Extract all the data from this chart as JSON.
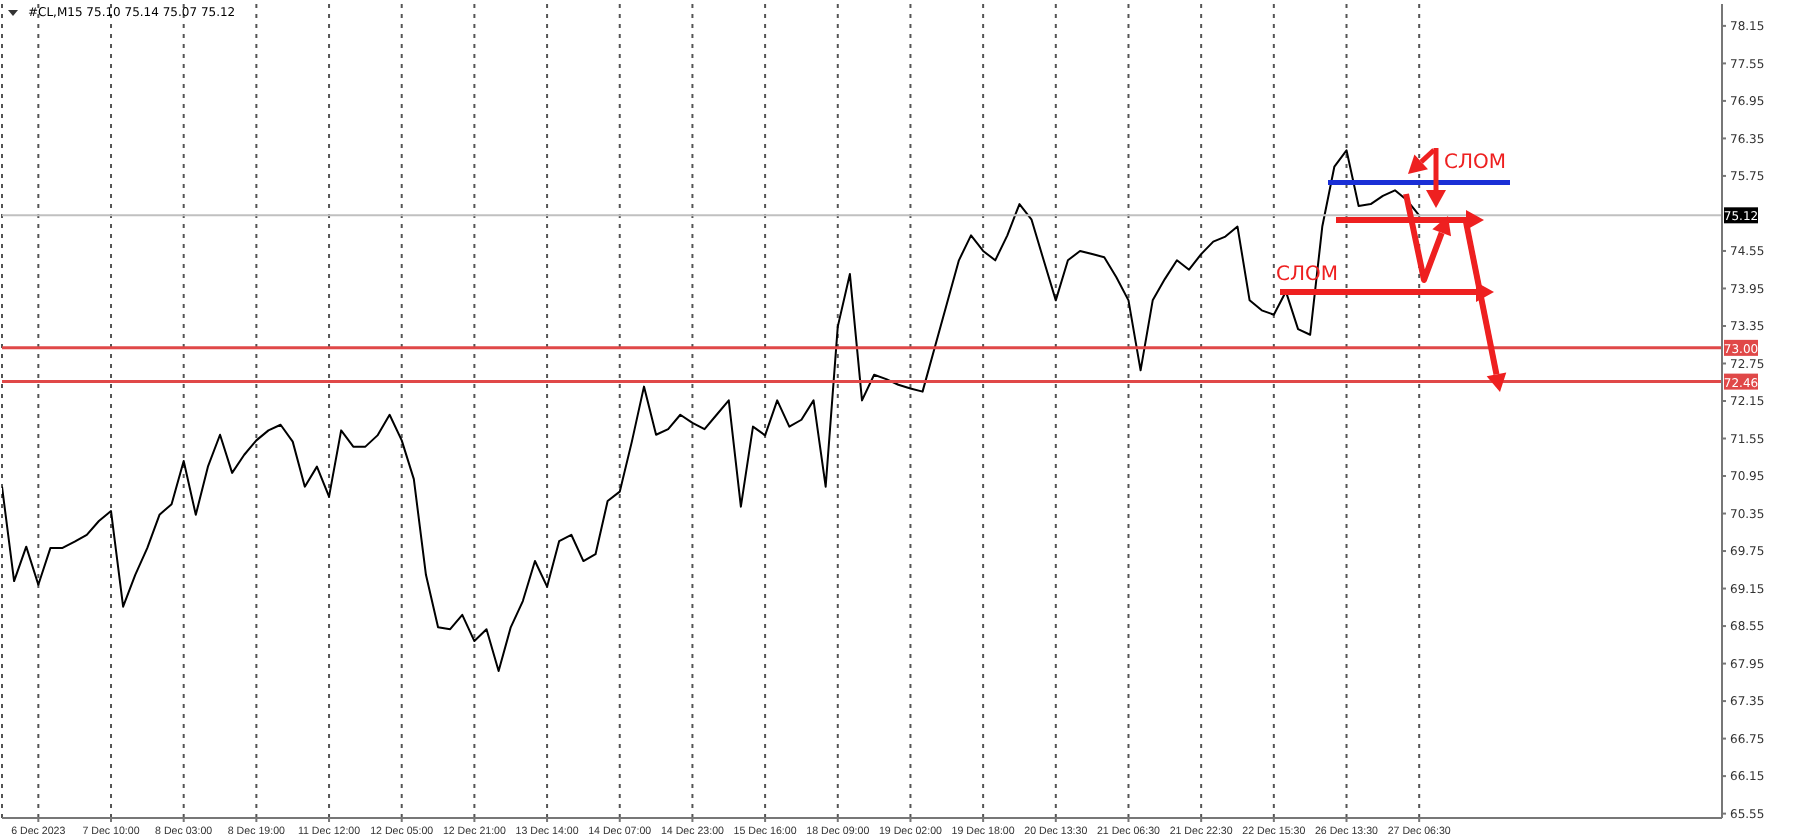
{
  "chart_data": {
    "type": "line",
    "title": "#CL,M15  75.10 75.14 75.07 75.12",
    "categories": [
      null,
      null,
      null,
      "6 Dec 2023",
      null,
      null,
      null,
      null,
      null,
      "7 Dec 10:00",
      null,
      null,
      null,
      null,
      null,
      "8 Dec 03:00",
      null,
      null,
      null,
      null,
      null,
      "8 Dec 19:00",
      null,
      null,
      null,
      null,
      null,
      "11 Dec 12:00",
      null,
      null,
      null,
      null,
      null,
      "12 Dec 05:00",
      null,
      null,
      null,
      null,
      null,
      "12 Dec 21:00",
      null,
      null,
      null,
      null,
      null,
      "13 Dec 14:00",
      null,
      null,
      null,
      null,
      null,
      "14 Dec 07:00",
      null,
      null,
      null,
      null,
      null,
      "14 Dec 23:00",
      null,
      null,
      null,
      null,
      null,
      "15 Dec 16:00",
      null,
      null,
      null,
      null,
      null,
      "18 Dec 09:00",
      null,
      null,
      null,
      null,
      null,
      "19 Dec 02:00",
      null,
      null,
      null,
      null,
      null,
      "19 Dec 18:00",
      null,
      null,
      null,
      null,
      null,
      "20 Dec 13:30",
      null,
      null,
      null,
      null,
      null,
      "21 Dec 06:30",
      null,
      null,
      null,
      null,
      null,
      "21 Dec 22:30",
      null,
      null,
      null,
      null,
      null,
      "22 Dec 15:30",
      null,
      null,
      null,
      null,
      null,
      "26 Dec 13:30",
      null,
      null,
      null,
      null,
      null,
      "27 Dec 06:30",
      null,
      null,
      null,
      null,
      null,
      null,
      null,
      null,
      null,
      null,
      null,
      null,
      null,
      null,
      null,
      null,
      null,
      null,
      null,
      null,
      null,
      null,
      null,
      null,
      null
    ],
    "series": [
      {
        "color": "#000000",
        "values": [
          70.78,
          69.27,
          69.82,
          69.21,
          69.8,
          69.8,
          69.9,
          70.01,
          70.23,
          70.39,
          68.86,
          69.37,
          69.8,
          70.33,
          70.5,
          71.19,
          70.33,
          71.1,
          71.61,
          71.0,
          71.29,
          71.52,
          71.68,
          71.77,
          71.5,
          70.78,
          71.1,
          70.62,
          71.68,
          71.42,
          71.42,
          71.6,
          71.93,
          71.52,
          70.9,
          69.37,
          68.53,
          68.5,
          68.73,
          68.31,
          68.5,
          67.83,
          68.53,
          68.95,
          69.59,
          69.18,
          69.91,
          70.01,
          69.59,
          69.7,
          70.55,
          70.7,
          71.5,
          72.38,
          71.61,
          71.7,
          71.93,
          71.8,
          71.7,
          71.93,
          72.16,
          70.46,
          71.74,
          71.6,
          72.16,
          71.74,
          71.85,
          72.16,
          70.78,
          73.34,
          74.18,
          72.16,
          72.57,
          72.5,
          72.41,
          72.35,
          72.3,
          73.0,
          73.7,
          74.4,
          74.8,
          74.55,
          74.4,
          74.8,
          75.3,
          75.05,
          74.4,
          73.76,
          74.4,
          74.55,
          74.5,
          74.45,
          74.13,
          73.76,
          72.64,
          73.76,
          74.1,
          74.4,
          74.25,
          74.5,
          74.7,
          74.78,
          74.94,
          73.76,
          73.6,
          73.53,
          73.9,
          73.3,
          73.21,
          74.94,
          75.9,
          76.16,
          75.27,
          75.3,
          75.43,
          75.52,
          75.36,
          75.12,
          null,
          null,
          null,
          null,
          null,
          null,
          null,
          null,
          null,
          null,
          null,
          null,
          null,
          null,
          null,
          null,
          null,
          null,
          null,
          null,
          null,
          null,
          null,
          null,
          null
        ]
      }
    ],
    "ylim": [
      65.48,
      78.5
    ],
    "yticks": [
      78.15,
      77.55,
      76.95,
      76.35,
      75.75,
      74.55,
      73.95,
      73.35,
      72.75,
      72.15,
      71.55,
      70.95,
      70.35,
      69.75,
      69.15,
      68.55,
      67.95,
      67.35,
      66.75,
      66.15,
      65.55
    ],
    "grid": "x",
    "marker": "none",
    "line_style": "solid",
    "legend": false,
    "ref_lines": [
      {
        "axis": "y",
        "value": 75.12,
        "label": "75.12",
        "color": "#c0c0c0"
      },
      {
        "axis": "y",
        "value": 73,
        "label": "73.00",
        "color": "#e04848"
      },
      {
        "axis": "y",
        "value": 72.46,
        "label": "72.46",
        "color": "#e04848"
      }
    ],
    "annotations": [
      "СЛОМ",
      "СЛОМ"
    ]
  }
}
